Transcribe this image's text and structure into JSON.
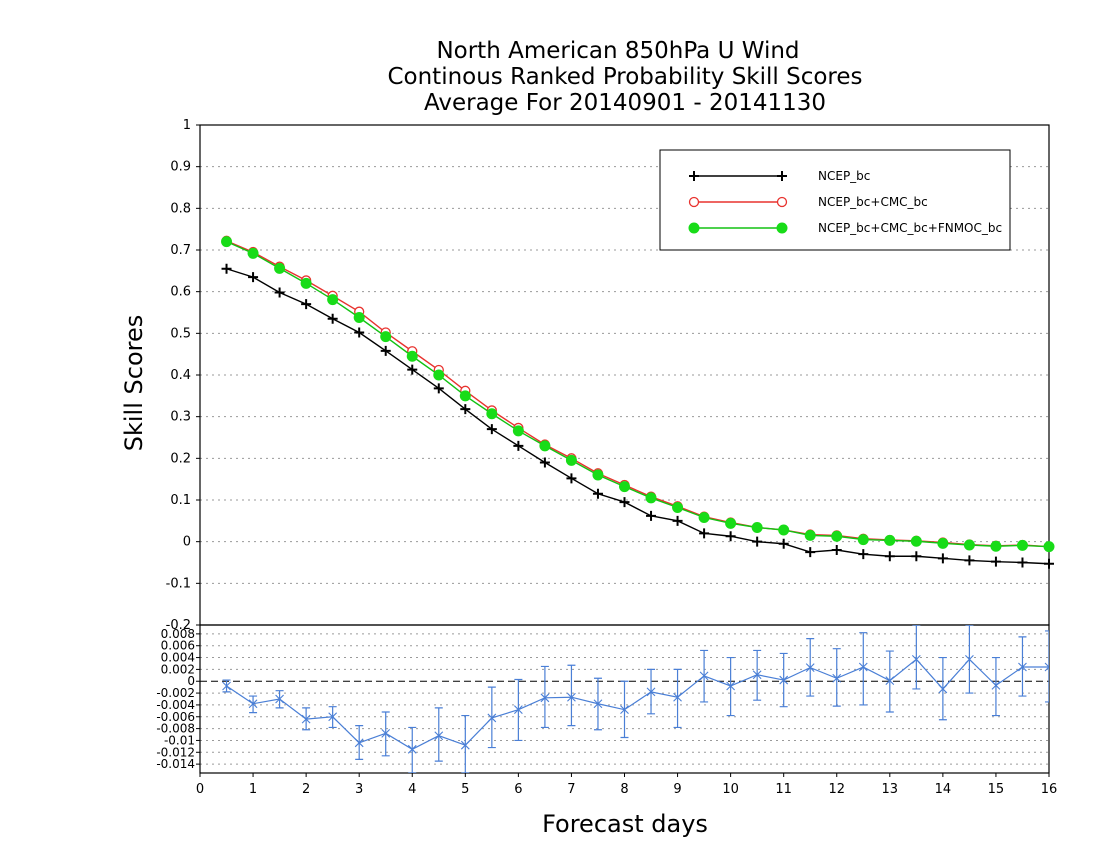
{
  "titles": {
    "line1": "North American 850hPa U Wind",
    "line2": "Continous Ranked Probability Skill Scores",
    "line3": "Average For 20140901 - 20141130"
  },
  "colors": {
    "ncep": "#000000",
    "ncep_cmc": "#e8322e",
    "ncep_cmc_fnmoc_line": "#12c212",
    "ncep_cmc_fnmoc_marker": "#18dc18",
    "diff": "#4a7fd6"
  },
  "chart_data": [
    {
      "type": "line",
      "xlabel": "Forecast days",
      "ylabel": "Skill Scores",
      "xlim": [
        0,
        16
      ],
      "ylim": [
        -0.2,
        1
      ],
      "yticks": [
        -0.2,
        -0.1,
        0,
        0.1,
        0.2,
        0.3,
        0.4,
        0.5,
        0.6,
        0.7,
        0.8,
        0.9,
        1
      ],
      "ytick_labels": [
        "-0.2",
        "-0.1",
        "0",
        "0.1",
        "0.2",
        "0.3",
        "0.4",
        "0.5",
        "0.6",
        "0.7",
        "0.8",
        "0.9",
        "1"
      ],
      "grid": true,
      "legend_position": "top-right",
      "x": [
        0.5,
        1.0,
        1.5,
        2.0,
        2.5,
        3.0,
        3.5,
        4.0,
        4.5,
        5.0,
        5.5,
        6.0,
        6.5,
        7.0,
        7.5,
        8.0,
        8.5,
        9.0,
        9.5,
        10.0,
        10.5,
        11.0,
        11.5,
        12.0,
        12.5,
        13.0,
        13.5,
        14.0,
        14.5,
        15.0,
        15.5,
        16.0
      ],
      "series": [
        {
          "name": "NCEP_bc",
          "marker": "plus",
          "values": [
            0.655,
            0.635,
            0.598,
            0.57,
            0.535,
            0.502,
            0.458,
            0.413,
            0.368,
            0.318,
            0.27,
            0.23,
            0.19,
            0.152,
            0.115,
            0.095,
            0.062,
            0.05,
            0.02,
            0.013,
            0.0,
            -0.005,
            -0.025,
            -0.02,
            -0.03,
            -0.035,
            -0.035,
            -0.04,
            -0.045,
            -0.048,
            -0.05,
            -0.053
          ]
        },
        {
          "name": "NCEP_bc+CMC_bc",
          "marker": "open-circle",
          "values": [
            0.722,
            0.695,
            0.66,
            0.627,
            0.59,
            0.552,
            0.502,
            0.457,
            0.412,
            0.362,
            0.315,
            0.273,
            0.233,
            0.2,
            0.164,
            0.136,
            0.108,
            0.085,
            0.06,
            0.046,
            0.034,
            0.028,
            0.017,
            0.015,
            0.007,
            0.004,
            0.002,
            -0.002,
            -0.007,
            -0.01,
            -0.008,
            -0.012
          ]
        },
        {
          "name": "NCEP_bc+CMC_bc+FNMOC_bc",
          "marker": "filled-circle",
          "values": [
            0.72,
            0.692,
            0.656,
            0.62,
            0.581,
            0.538,
            0.492,
            0.445,
            0.4,
            0.35,
            0.307,
            0.266,
            0.23,
            0.195,
            0.16,
            0.132,
            0.105,
            0.082,
            0.058,
            0.044,
            0.034,
            0.028,
            0.015,
            0.013,
            0.005,
            0.003,
            0.001,
            -0.004,
            -0.008,
            -0.011,
            -0.009,
            -0.012
          ]
        }
      ]
    },
    {
      "type": "line",
      "xlabel": "Forecast days",
      "xlim": [
        0,
        16
      ],
      "xticks": [
        0,
        1,
        2,
        3,
        4,
        5,
        6,
        7,
        8,
        9,
        10,
        11,
        12,
        13,
        14,
        15,
        16
      ],
      "ylim": [
        -0.0155,
        0.0095
      ],
      "yticks": [
        -0.014,
        -0.012,
        -0.01,
        -0.008,
        -0.006,
        -0.004,
        -0.002,
        0,
        0.002,
        0.004,
        0.006,
        0.008
      ],
      "ytick_labels": [
        "-0.014",
        "-0.012",
        "-0.01",
        "-0.008",
        "-0.006",
        "-0.004",
        "-0.002",
        "0",
        "0.002",
        "0.004",
        "0.006",
        "0.008"
      ],
      "grid": true,
      "reference_line": 0,
      "x": [
        0.5,
        1.0,
        1.5,
        2.0,
        2.5,
        3.0,
        3.5,
        4.0,
        4.5,
        5.0,
        5.5,
        6.0,
        6.5,
        7.0,
        7.5,
        8.0,
        8.5,
        9.0,
        9.5,
        10.0,
        10.5,
        11.0,
        11.5,
        12.0,
        12.5,
        13.0,
        13.5,
        14.0,
        14.5,
        15.0,
        15.5,
        16.0
      ],
      "values": [
        -0.0008,
        -0.0038,
        -0.003,
        -0.0064,
        -0.006,
        -0.0104,
        -0.0088,
        -0.0115,
        -0.0092,
        -0.0108,
        -0.0062,
        -0.0048,
        -0.0028,
        -0.0027,
        -0.0038,
        -0.0048,
        -0.0018,
        -0.0027,
        0.0009,
        -0.0008,
        0.0011,
        0.0002,
        0.0023,
        0.0005,
        0.0024,
        0.0001,
        0.0037,
        -0.0013,
        0.0037,
        -0.0007,
        0.0024,
        0.0024
      ],
      "error_low": [
        -0.0018,
        -0.0053,
        -0.0045,
        -0.0082,
        -0.0078,
        -0.0132,
        -0.0126,
        -0.0155,
        -0.0135,
        -0.0155,
        -0.0112,
        -0.01,
        -0.0078,
        -0.0075,
        -0.0082,
        -0.0095,
        -0.0055,
        -0.0078,
        -0.0035,
        -0.0058,
        -0.0032,
        -0.0043,
        -0.0025,
        -0.0042,
        -0.004,
        -0.0052,
        -0.0013,
        -0.0065,
        -0.002,
        -0.0058,
        -0.0025,
        -0.0035
      ],
      "error_high": [
        0.0002,
        -0.0025,
        -0.0016,
        -0.0045,
        -0.0043,
        -0.0075,
        -0.0052,
        -0.0078,
        -0.0045,
        -0.0058,
        -0.001,
        0.0003,
        0.0025,
        0.0027,
        0.0005,
        0.0,
        0.002,
        0.002,
        0.0052,
        0.004,
        0.0052,
        0.0047,
        0.0072,
        0.0055,
        0.0082,
        0.0051,
        0.0095,
        0.004,
        0.0095,
        0.004,
        0.0075,
        0.0085
      ]
    }
  ]
}
